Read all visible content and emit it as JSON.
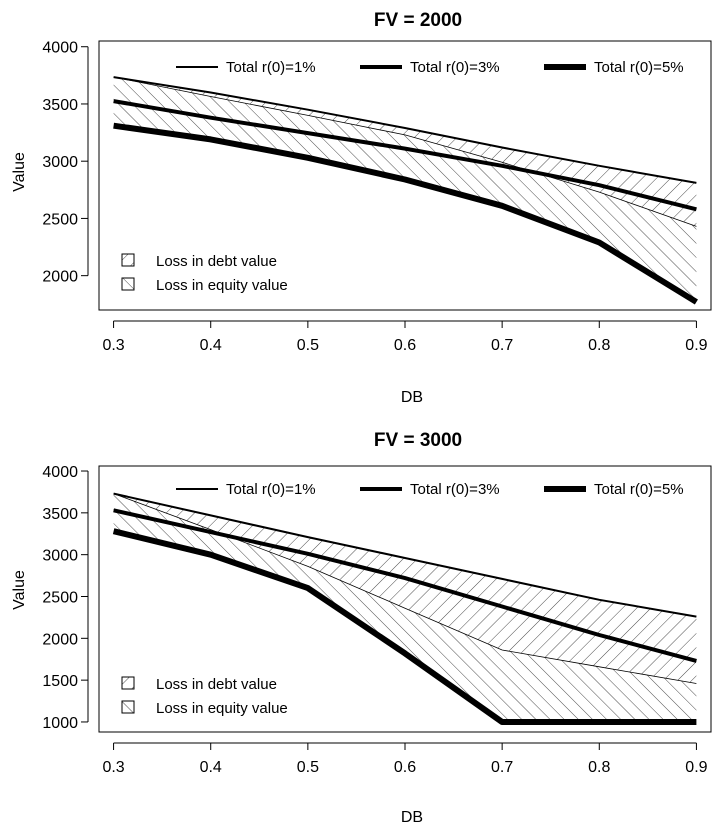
{
  "chart_data": [
    {
      "type": "line",
      "title": "FV = 2000",
      "xlabel": "DB",
      "ylabel": "Value",
      "x": [
        0.3,
        0.4,
        0.5,
        0.6,
        0.7,
        0.8,
        0.9
      ],
      "x_ticks": [
        "0.3",
        "0.4",
        "0.5",
        "0.6",
        "0.7",
        "0.8",
        "0.9"
      ],
      "y_ticks": [
        2000,
        2500,
        3000,
        3500,
        4000
      ],
      "y_tick_labels": [
        "2000",
        "2500",
        "3000",
        "3500",
        "4000"
      ],
      "xlim": [
        0.285,
        0.915
      ],
      "ylim": [
        1700,
        4050
      ],
      "legend_placement": "top",
      "series": [
        {
          "name": "Total r(0)=1%",
          "line_width": 2,
          "values": [
            3735,
            3600,
            3450,
            3290,
            3120,
            2960,
            2810
          ]
        },
        {
          "name": "Total r(0)=3%",
          "line_width": 4,
          "values": [
            3525,
            3380,
            3245,
            3110,
            2960,
            2790,
            2580
          ]
        },
        {
          "name": "Total r(0)=5%",
          "line_width": 6,
          "values": [
            3310,
            3190,
            3030,
            2840,
            2610,
            2290,
            1770
          ]
        }
      ],
      "debt_value_boundary": [
        3735,
        3565,
        3400,
        3230,
        2990,
        2730,
        2430
      ],
      "hatch_legend": [
        "Loss in debt value",
        "Loss in equity value"
      ],
      "hatch_legend_placement": "bottom-left"
    },
    {
      "type": "line",
      "title": "FV = 3000",
      "xlabel": "DB",
      "ylabel": "Value",
      "x": [
        0.3,
        0.4,
        0.5,
        0.6,
        0.7,
        0.8,
        0.9
      ],
      "x_ticks": [
        "0.3",
        "0.4",
        "0.5",
        "0.6",
        "0.7",
        "0.8",
        "0.9"
      ],
      "y_ticks": [
        1000,
        1500,
        2000,
        2500,
        3000,
        3500,
        4000
      ],
      "y_tick_labels": [
        "1000",
        "1500",
        "2000",
        "2500",
        "3000",
        "3500",
        "4000"
      ],
      "xlim": [
        0.285,
        0.915
      ],
      "ylim": [
        880,
        4060
      ],
      "legend_placement": "top",
      "series": [
        {
          "name": "Total r(0)=1%",
          "line_width": 2,
          "values": [
            3730,
            3470,
            3210,
            2960,
            2710,
            2460,
            2260
          ]
        },
        {
          "name": "Total r(0)=3%",
          "line_width": 4,
          "values": [
            3530,
            3270,
            3010,
            2720,
            2380,
            2040,
            1730
          ]
        },
        {
          "name": "Total r(0)=5%",
          "line_width": 6,
          "values": [
            3280,
            3000,
            2600,
            1820,
            1000,
            1000,
            1000
          ]
        }
      ],
      "debt_value_boundary": [
        3730,
        3300,
        2860,
        2360,
        1860,
        1660,
        1460
      ],
      "hatch_legend": [
        "Loss in debt value",
        "Loss in equity value"
      ],
      "hatch_legend_placement": "bottom-left"
    }
  ]
}
